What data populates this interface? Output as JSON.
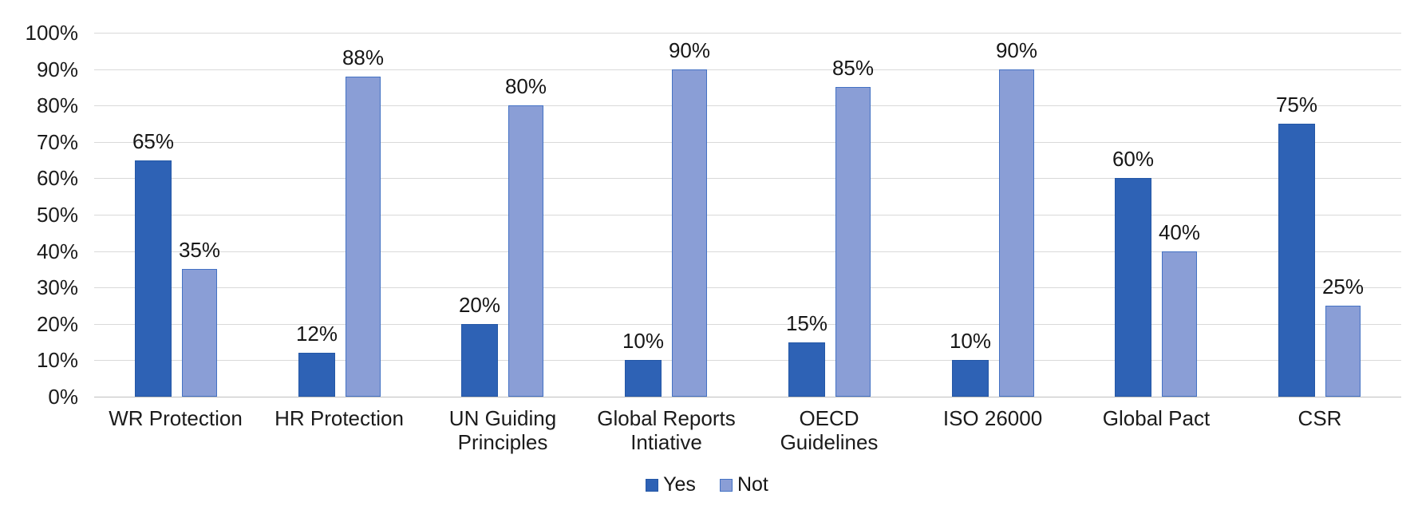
{
  "chart_data": {
    "type": "bar",
    "title": "",
    "xlabel": "",
    "ylabel": "",
    "categories": [
      "WR Protection",
      "HR Protection",
      "UN Guiding\nPrinciples",
      "Global Reports\nIntiative",
      "OECD\nGuidelines",
      "ISO 26000",
      "Global Pact",
      "CSR"
    ],
    "series": [
      {
        "name": "Yes",
        "values": [
          65,
          12,
          20,
          10,
          15,
          10,
          60,
          75
        ],
        "color": "#2E62B5",
        "border_color": "#2457A6"
      },
      {
        "name": "Not",
        "values": [
          35,
          88,
          80,
          90,
          85,
          90,
          40,
          25
        ],
        "color": "#8A9ED6",
        "border_color": "#4472C4"
      }
    ],
    "value_label_suffix": "%",
    "y_ticks": [
      "0%",
      "10%",
      "20%",
      "30%",
      "40%",
      "50%",
      "60%",
      "70%",
      "80%",
      "90%",
      "100%"
    ],
    "y_tick_values": [
      0,
      10,
      20,
      30,
      40,
      50,
      60,
      70,
      80,
      90,
      100
    ],
    "ylim": [
      0,
      100
    ],
    "grid": true,
    "legend_position": "bottom",
    "colors": {
      "gridline": "#D9D9D9",
      "axis_line": "#BFBFBF",
      "text": "#1B1B1B",
      "background": "#FFFFFF"
    }
  }
}
